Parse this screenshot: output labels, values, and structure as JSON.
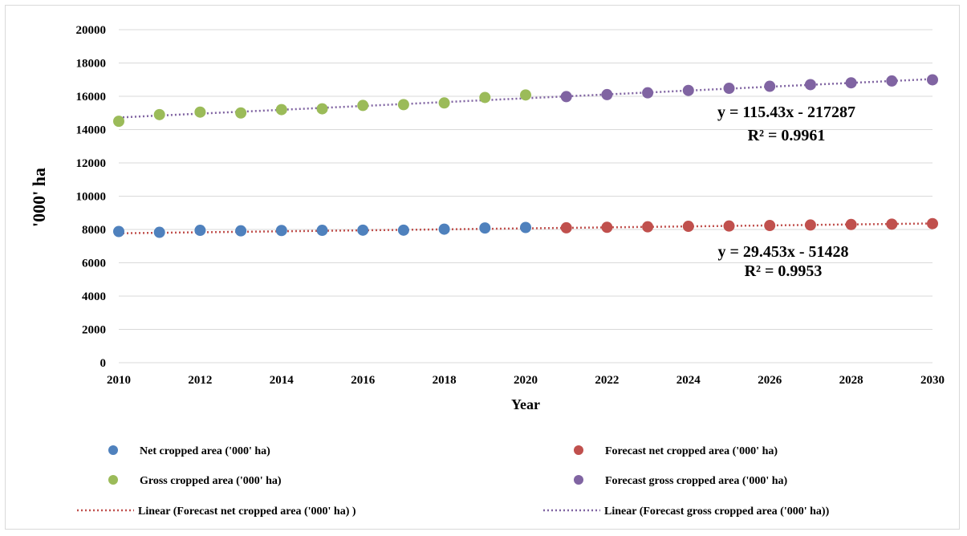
{
  "chart_data": {
    "type": "scatter",
    "title": "",
    "xlabel": "Year",
    "ylabel": "'000' ha",
    "xlim": [
      2010,
      2030
    ],
    "ylim": [
      0,
      20000
    ],
    "x_ticks": [
      "2010",
      "2012",
      "2014",
      "2016",
      "2018",
      "2020",
      "2022",
      "2024",
      "2026",
      "2028",
      "2030"
    ],
    "y_ticks": [
      "0",
      "2000",
      "4000",
      "6000",
      "8000",
      "10000",
      "12000",
      "14000",
      "16000",
      "18000",
      "20000"
    ],
    "grid": "horizontal",
    "legend_position": "bottom",
    "series": [
      {
        "name": "Net cropped area ('000' ha)",
        "color": "#4f81bd",
        "kind": "marker",
        "x": [
          2010,
          2011,
          2012,
          2013,
          2014,
          2015,
          2016,
          2017,
          2018,
          2019,
          2020
        ],
        "y": [
          7880,
          7830,
          7950,
          7920,
          7940,
          7950,
          7960,
          7960,
          8020,
          8090,
          8120
        ]
      },
      {
        "name": "Forecast net cropped area ('000' ha)",
        "color": "#c0504d",
        "kind": "marker",
        "x": [
          2021,
          2022,
          2023,
          2024,
          2025,
          2026,
          2027,
          2028,
          2029,
          2030
        ],
        "y": [
          8100,
          8130,
          8160,
          8190,
          8210,
          8240,
          8270,
          8300,
          8320,
          8350
        ]
      },
      {
        "name": "Gross cropped area ('000' ha)",
        "color": "#9bbb59",
        "kind": "marker",
        "x": [
          2010,
          2011,
          2012,
          2013,
          2014,
          2015,
          2016,
          2017,
          2018,
          2019,
          2020
        ],
        "y": [
          14500,
          14900,
          15050,
          15000,
          15200,
          15250,
          15450,
          15500,
          15600,
          15930,
          16080
        ]
      },
      {
        "name": "Forecast gross cropped area ('000' ha)",
        "color": "#8064a2",
        "kind": "marker",
        "x": [
          2021,
          2022,
          2023,
          2024,
          2025,
          2026,
          2027,
          2028,
          2029,
          2030
        ],
        "y": [
          15980,
          16100,
          16210,
          16350,
          16480,
          16600,
          16700,
          16810,
          16920,
          16990
        ]
      },
      {
        "name": "Linear (Forecast net cropped area ('000' ha) )",
        "color": "#c0504d",
        "kind": "trendline",
        "x": [
          2010,
          2030
        ],
        "y": [
          7773,
          8362
        ]
      },
      {
        "name": "Linear (Forecast gross cropped area ('000' ha))",
        "color": "#8064a2",
        "kind": "trendline",
        "x": [
          2010,
          2030
        ],
        "y": [
          14727,
          17035
        ]
      }
    ],
    "annotations": [
      {
        "text": "y = 115.43x - 217287"
      },
      {
        "text": "R² = 0.9961"
      },
      {
        "text": "y = 29.453x - 51428"
      },
      {
        "text": "R² = 0.9953"
      }
    ]
  }
}
